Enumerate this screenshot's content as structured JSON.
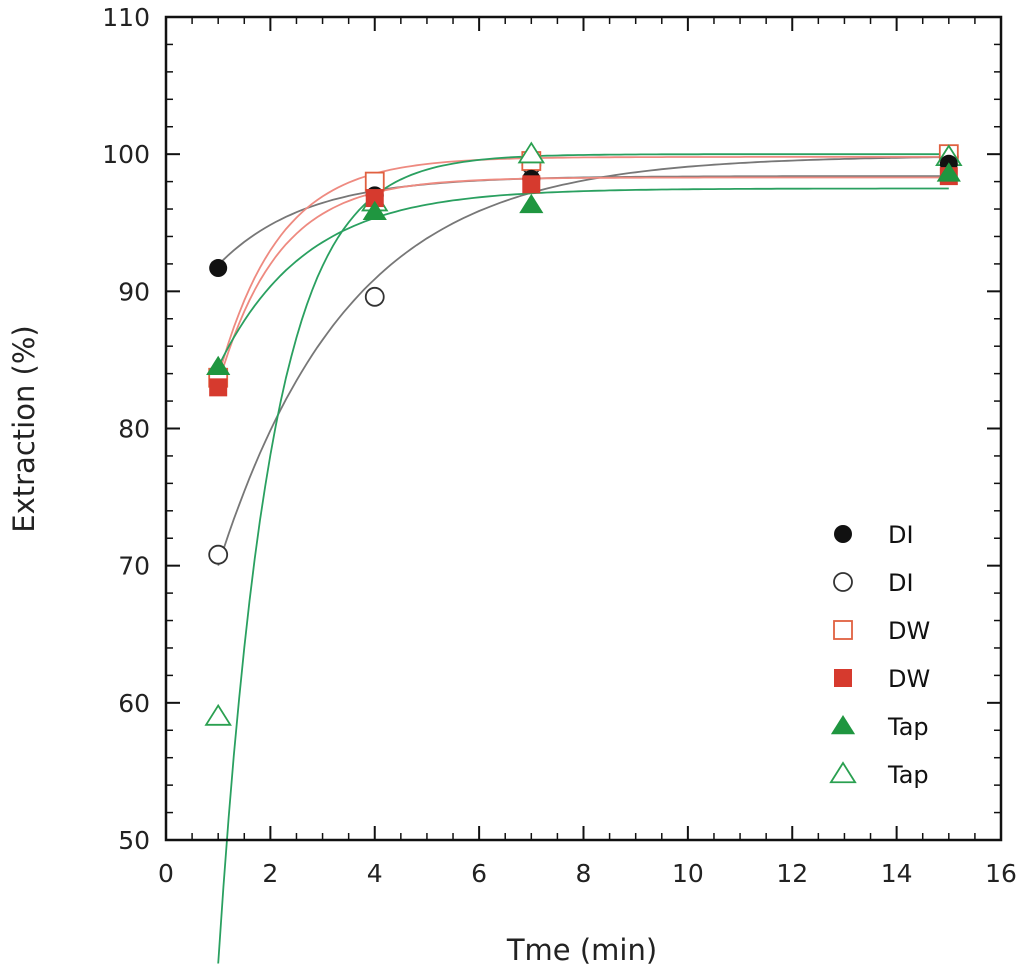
{
  "chart_data": {
    "type": "scatter",
    "title": "",
    "xlabel": "Tme (min)",
    "ylabel": "Extraction (%)",
    "xlim": [
      0,
      16
    ],
    "ylim": [
      50,
      110
    ],
    "xticks": [
      0,
      2,
      4,
      6,
      8,
      10,
      12,
      14,
      16
    ],
    "xtick_labels": [
      "0",
      "2",
      "4",
      "6",
      "8",
      "10",
      "12",
      "14",
      "16"
    ],
    "yticks": [
      50,
      60,
      70,
      80,
      90,
      100,
      110
    ],
    "ytick_labels": [
      "50",
      "60",
      "70",
      "80",
      "90",
      "100",
      "110"
    ],
    "grid": false,
    "legend_position": "bottom-right",
    "series": [
      {
        "name": "DI",
        "marker": "circle",
        "filled": true,
        "color": "#111111",
        "line_color": "#777777",
        "x": [
          1,
          4,
          7,
          15
        ],
        "y": [
          91.7,
          97.0,
          98.2,
          99.3
        ],
        "fit": {
          "a": 98.4,
          "b": 11.8,
          "k": 0.6
        }
      },
      {
        "name": "DI",
        "marker": "circle",
        "filled": false,
        "color": "#333333",
        "line_color": "#777777",
        "x": [
          1,
          4,
          7,
          15
        ],
        "y": [
          70.8,
          89.6,
          99.2,
          99.8
        ],
        "fit": {
          "a": 99.9,
          "b": 44.6,
          "k": 0.4
        }
      },
      {
        "name": "DW",
        "marker": "square",
        "filled": false,
        "color": "#e06040",
        "line_color": "#ee8a80",
        "x": [
          1,
          4,
          7,
          15
        ],
        "y": [
          83.7,
          98.0,
          99.5,
          100.0
        ],
        "fit": {
          "a": 99.8,
          "b": 38.0,
          "k": 0.86
        }
      },
      {
        "name": "DW",
        "marker": "square",
        "filled": true,
        "color": "#d63a2e",
        "line_color": "#ee8a80",
        "x": [
          1,
          4,
          7,
          15
        ],
        "y": [
          83.0,
          96.8,
          97.8,
          98.4
        ],
        "fit": {
          "a": 98.3,
          "b": 36.0,
          "k": 0.87
        }
      },
      {
        "name": "Tap",
        "marker": "triangle",
        "filled": true,
        "color": "#1f9640",
        "line_color": "#2aa060",
        "x": [
          1,
          4,
          7,
          15
        ],
        "y": [
          84.5,
          95.8,
          96.3,
          98.6
        ],
        "fit": {
          "a": 97.5,
          "b": 23.7,
          "k": 0.6
        }
      },
      {
        "name": "Tap",
        "marker": "triangle",
        "filled": false,
        "color": "#2aa050",
        "line_color": "#2aa060",
        "x": [
          1,
          4,
          7,
          15
        ],
        "y": [
          59.0,
          96.5,
          100.0,
          99.8
        ],
        "fit": {
          "a": 100.0,
          "b": 158.8,
          "k": 0.99
        }
      }
    ],
    "legend": [
      {
        "label": "DI",
        "series_index": 0
      },
      {
        "label": "DI",
        "series_index": 1
      },
      {
        "label": "DW",
        "series_index": 2
      },
      {
        "label": "DW",
        "series_index": 3
      },
      {
        "label": "Tap",
        "series_index": 4
      },
      {
        "label": "Tap",
        "series_index": 5
      }
    ]
  }
}
